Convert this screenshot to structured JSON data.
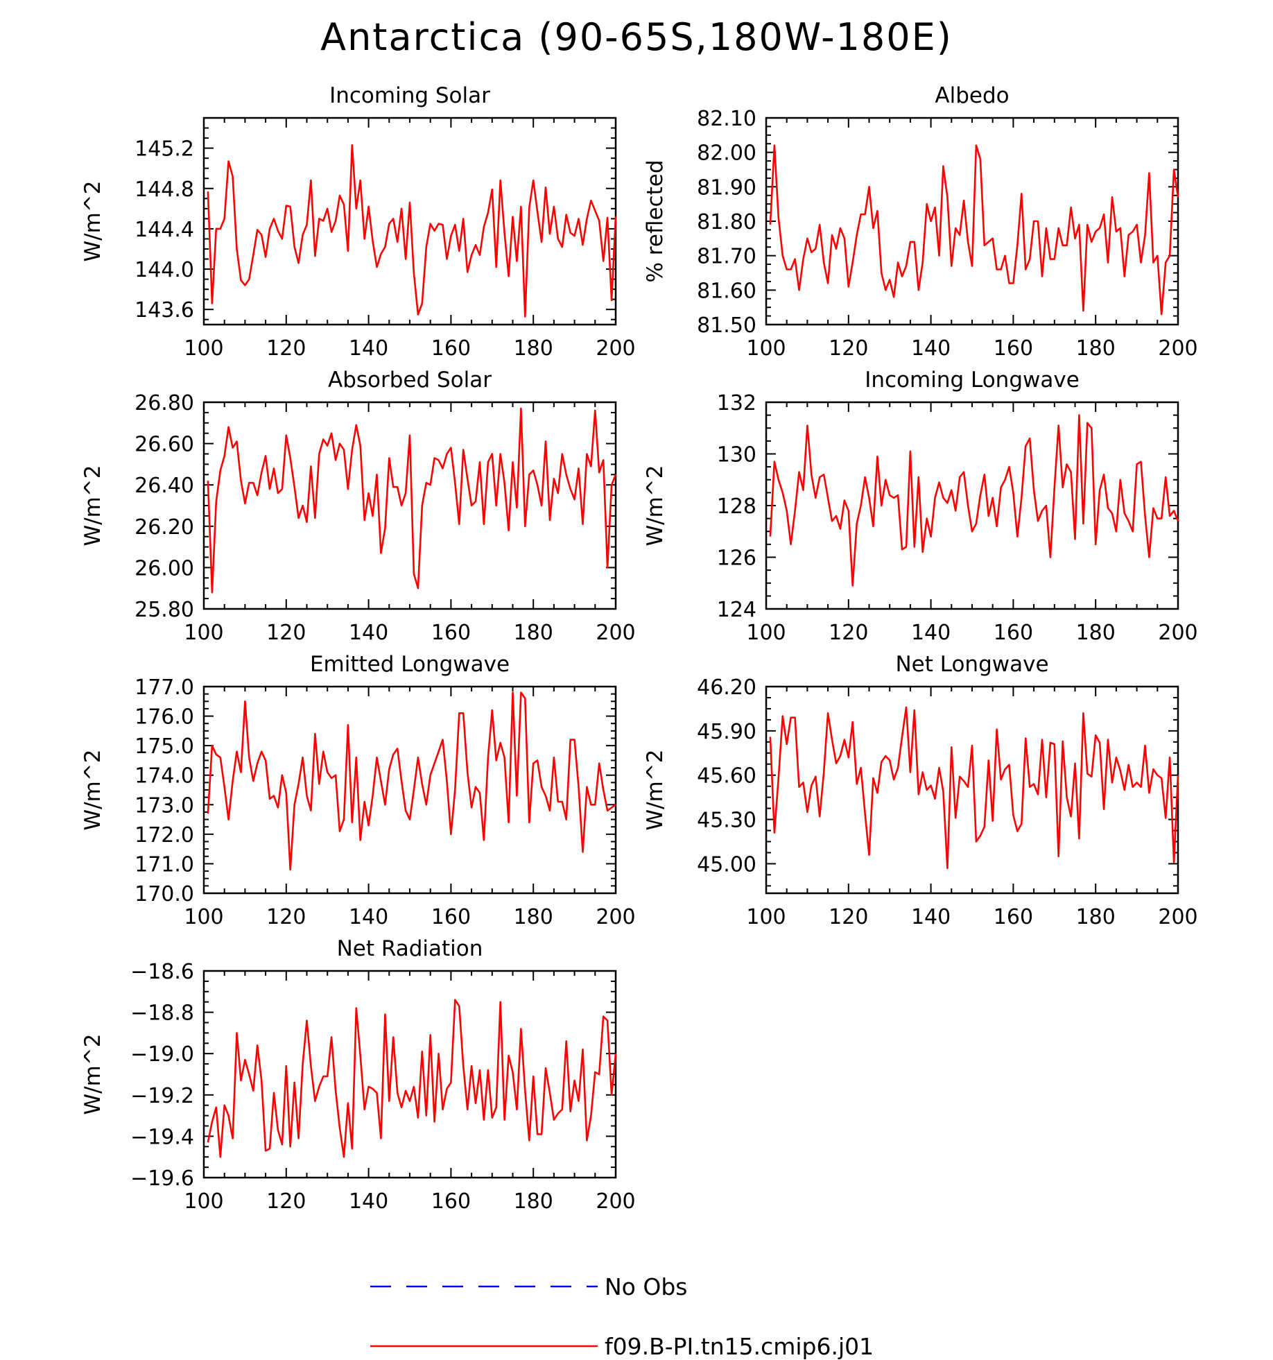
{
  "title": "Antarctica (90-65S,180W-180E)",
  "colors": {
    "model": "#ff0000",
    "obs": "#0000ff",
    "axis": "#000000"
  },
  "legend": [
    {
      "label": "No Obs",
      "style": "dashed",
      "color": "#0000ff"
    },
    {
      "label": "f09.B-PI.tn15.cmip6.j01",
      "style": "solid",
      "color": "#ff0000"
    }
  ],
  "chart_data": [
    {
      "type": "line",
      "title": "Incoming Solar",
      "ylabel": "W/m^2",
      "xlim": [
        100,
        200
      ],
      "ylim": [
        143.45,
        145.5
      ],
      "xticks": [
        100,
        120,
        140,
        160,
        180,
        200
      ],
      "yticks": [
        143.6,
        144.0,
        144.4,
        144.8,
        145.2
      ],
      "ytick_decimals": 1,
      "series": [
        {
          "name": "f09.B-PI.tn15.cmip6.j01",
          "x_start": 101,
          "x_step": 1,
          "values": [
            144.77,
            143.66,
            144.4,
            144.4,
            144.5,
            145.07,
            144.92,
            144.2,
            143.89,
            143.84,
            143.9,
            144.14,
            144.39,
            144.34,
            144.12,
            144.4,
            144.5,
            144.38,
            144.3,
            144.63,
            144.62,
            144.22,
            144.06,
            144.34,
            144.44,
            144.88,
            144.13,
            144.5,
            144.48,
            144.6,
            144.37,
            144.48,
            144.73,
            144.64,
            144.18,
            145.23,
            144.6,
            144.88,
            144.3,
            144.62,
            144.28,
            144.02,
            144.15,
            144.22,
            144.45,
            144.5,
            144.27,
            144.6,
            144.1,
            144.66,
            143.96,
            143.55,
            143.66,
            144.22,
            144.45,
            144.38,
            144.45,
            144.44,
            144.1,
            144.33,
            144.44,
            144.18,
            144.5,
            143.97,
            144.14,
            144.24,
            144.14,
            144.42,
            144.56,
            144.79,
            144.02,
            144.88,
            144.36,
            143.93,
            144.52,
            144.08,
            144.62,
            143.53,
            144.61,
            144.88,
            144.57,
            144.27,
            144.81,
            144.35,
            144.62,
            144.3,
            144.22,
            144.54,
            144.36,
            144.33,
            144.5,
            144.24,
            144.5,
            144.68,
            144.58,
            144.48,
            144.08,
            144.51,
            143.69,
            144.52
          ]
        }
      ]
    },
    {
      "type": "line",
      "title": "Albedo",
      "ylabel": "% reflected",
      "xlim": [
        100,
        200
      ],
      "ylim": [
        81.5,
        82.1
      ],
      "xticks": [
        100,
        120,
        140,
        160,
        180,
        200
      ],
      "yticks": [
        81.5,
        81.6,
        81.7,
        81.8,
        81.9,
        82.0,
        82.1
      ],
      "ytick_decimals": 2,
      "series": [
        {
          "name": "f09.B-PI.tn15.cmip6.j01",
          "x_start": 101,
          "x_step": 1,
          "values": [
            81.79,
            82.02,
            81.81,
            81.7,
            81.66,
            81.66,
            81.69,
            81.6,
            81.69,
            81.75,
            81.71,
            81.72,
            81.79,
            81.68,
            81.62,
            81.76,
            81.72,
            81.78,
            81.75,
            81.61,
            81.68,
            81.76,
            81.82,
            81.82,
            81.9,
            81.78,
            81.83,
            81.65,
            81.6,
            81.63,
            81.58,
            81.68,
            81.64,
            81.67,
            81.74,
            81.74,
            81.6,
            81.68,
            81.85,
            81.8,
            81.84,
            81.7,
            81.96,
            81.87,
            81.67,
            81.78,
            81.76,
            81.86,
            81.74,
            81.67,
            82.02,
            81.98,
            81.73,
            81.74,
            81.75,
            81.66,
            81.66,
            81.7,
            81.62,
            81.62,
            81.73,
            81.88,
            81.66,
            81.69,
            81.8,
            81.8,
            81.64,
            81.78,
            81.69,
            81.69,
            81.78,
            81.73,
            81.73,
            81.84,
            81.75,
            81.79,
            81.54,
            81.79,
            81.74,
            81.77,
            81.78,
            81.82,
            81.68,
            81.87,
            81.77,
            81.78,
            81.64,
            81.76,
            81.77,
            81.79,
            81.68,
            81.76,
            81.94,
            81.68,
            81.7,
            81.53,
            81.68,
            81.7,
            81.95,
            81.87
          ]
        }
      ]
    },
    {
      "type": "line",
      "title": "Absorbed Solar",
      "ylabel": "W/m^2",
      "xlim": [
        100,
        200
      ],
      "ylim": [
        25.8,
        26.8
      ],
      "xticks": [
        100,
        120,
        140,
        160,
        180,
        200
      ],
      "yticks": [
        25.8,
        26.0,
        26.2,
        26.4,
        26.6,
        26.8
      ],
      "ytick_decimals": 2,
      "series": [
        {
          "name": "f09.B-PI.tn15.cmip6.j01",
          "x_start": 101,
          "x_step": 1,
          "values": [
            26.42,
            25.88,
            26.32,
            26.47,
            26.54,
            26.68,
            26.58,
            26.61,
            26.42,
            26.31,
            26.41,
            26.41,
            26.35,
            26.46,
            26.54,
            26.38,
            26.48,
            26.36,
            26.38,
            26.64,
            26.53,
            26.39,
            26.24,
            26.3,
            26.22,
            26.49,
            26.24,
            26.55,
            26.62,
            26.59,
            26.65,
            26.52,
            26.6,
            26.57,
            26.38,
            26.57,
            26.69,
            26.59,
            26.23,
            26.36,
            26.25,
            26.45,
            26.07,
            26.19,
            26.53,
            26.39,
            26.39,
            26.3,
            26.36,
            26.64,
            25.97,
            25.9,
            26.3,
            26.41,
            26.4,
            26.53,
            26.52,
            26.48,
            26.55,
            26.58,
            26.41,
            26.21,
            26.57,
            26.43,
            26.3,
            26.32,
            26.51,
            26.21,
            26.51,
            26.55,
            26.3,
            26.55,
            26.41,
            26.18,
            26.51,
            26.29,
            26.77,
            26.2,
            26.45,
            26.47,
            26.4,
            26.3,
            26.61,
            26.23,
            26.43,
            26.36,
            26.55,
            26.45,
            26.38,
            26.33,
            26.48,
            26.21,
            26.55,
            26.49,
            26.76,
            26.46,
            26.52,
            26.0,
            26.4,
            26.45
          ]
        }
      ]
    },
    {
      "type": "line",
      "title": "Incoming Longwave",
      "ylabel": "W/m^2",
      "xlim": [
        100,
        200
      ],
      "ylim": [
        124,
        132
      ],
      "xticks": [
        100,
        120,
        140,
        160,
        180,
        200
      ],
      "yticks": [
        124,
        126,
        128,
        130,
        132
      ],
      "ytick_decimals": 0,
      "series": [
        {
          "name": "f09.B-PI.tn15.cmip6.j01",
          "x_start": 101,
          "x_step": 1,
          "values": [
            126.8,
            129.7,
            129.0,
            128.5,
            127.8,
            126.5,
            127.8,
            129.3,
            128.6,
            131.1,
            129.2,
            128.3,
            129.1,
            129.2,
            128.3,
            127.4,
            127.6,
            127.1,
            128.2,
            127.8,
            124.9,
            127.3,
            128.0,
            129.1,
            128.3,
            127.2,
            129.9,
            128.0,
            129.0,
            128.4,
            128.3,
            128.4,
            126.3,
            126.4,
            130.1,
            126.4,
            129.1,
            126.2,
            127.5,
            126.8,
            128.3,
            128.9,
            128.3,
            128.1,
            128.6,
            127.8,
            129.1,
            129.3,
            128.0,
            127.0,
            127.3,
            128.4,
            129.2,
            127.6,
            128.3,
            127.2,
            128.7,
            129.0,
            129.5,
            128.5,
            126.8,
            128.3,
            130.3,
            130.6,
            128.6,
            127.4,
            127.8,
            128.0,
            126.0,
            128.7,
            131.1,
            128.7,
            129.6,
            129.3,
            126.7,
            131.5,
            127.3,
            131.2,
            131.0,
            126.5,
            128.6,
            129.2,
            127.9,
            127.7,
            127.0,
            129.0,
            127.7,
            127.4,
            127.0,
            129.6,
            129.7,
            127.6,
            126.0,
            127.9,
            127.5,
            127.5,
            129.1,
            127.6,
            127.8,
            127.4
          ]
        }
      ]
    },
    {
      "type": "line",
      "title": "Emitted Longwave",
      "ylabel": "W/m^2",
      "xlim": [
        100,
        200
      ],
      "ylim": [
        170,
        177
      ],
      "xticks": [
        100,
        120,
        140,
        160,
        180,
        200
      ],
      "yticks": [
        170.0,
        171.0,
        172.0,
        173.0,
        174.0,
        175.0,
        176.0,
        177.0
      ],
      "ytick_decimals": 1,
      "series": [
        {
          "name": "f09.B-PI.tn15.cmip6.j01",
          "x_start": 101,
          "x_step": 1,
          "values": [
            172.7,
            175.0,
            174.7,
            174.6,
            173.6,
            172.5,
            173.8,
            174.8,
            174.1,
            176.5,
            174.6,
            173.8,
            174.4,
            174.8,
            174.5,
            173.2,
            173.3,
            172.9,
            174.0,
            173.4,
            170.8,
            173.0,
            173.7,
            174.6,
            173.3,
            172.8,
            175.4,
            173.7,
            174.8,
            174.1,
            173.9,
            174.0,
            172.1,
            172.5,
            175.7,
            172.4,
            174.6,
            171.8,
            173.1,
            172.3,
            173.3,
            174.6,
            173.8,
            173.0,
            174.2,
            174.7,
            174.9,
            173.8,
            172.8,
            172.5,
            173.5,
            174.6,
            173.7,
            173.0,
            174.0,
            174.4,
            174.8,
            175.2,
            173.8,
            172.0,
            173.5,
            176.1,
            176.1,
            174.1,
            172.9,
            173.6,
            173.4,
            171.8,
            174.6,
            176.2,
            174.5,
            175.1,
            174.6,
            172.4,
            176.8,
            173.3,
            176.8,
            176.6,
            172.4,
            174.4,
            174.5,
            173.6,
            173.3,
            172.8,
            174.6,
            173.1,
            173.1,
            172.5,
            175.2,
            175.2,
            173.6,
            171.4,
            173.6,
            173.0,
            173.0,
            174.4,
            173.5,
            172.8,
            172.9,
            173.0
          ]
        }
      ]
    },
    {
      "type": "line",
      "title": "Net Longwave",
      "ylabel": "W/m^2",
      "xlim": [
        100,
        200
      ],
      "ylim": [
        44.8,
        46.2
      ],
      "xticks": [
        100,
        120,
        140,
        160,
        180,
        200
      ],
      "yticks": [
        45.0,
        45.3,
        45.6,
        45.9,
        46.2
      ],
      "ytick_decimals": 2,
      "series": [
        {
          "name": "f09.B-PI.tn15.cmip6.j01",
          "x_start": 101,
          "x_step": 1,
          "values": [
            45.86,
            45.21,
            45.58,
            46.0,
            45.81,
            45.99,
            45.99,
            45.52,
            45.55,
            45.35,
            45.53,
            45.59,
            45.32,
            45.62,
            46.02,
            45.84,
            45.68,
            45.73,
            45.84,
            45.72,
            45.96,
            45.54,
            45.65,
            45.34,
            45.06,
            45.58,
            45.48,
            45.69,
            45.73,
            45.7,
            45.57,
            45.65,
            45.86,
            46.06,
            45.62,
            46.04,
            45.47,
            45.62,
            45.5,
            45.53,
            45.44,
            45.65,
            45.49,
            44.97,
            45.79,
            45.31,
            45.59,
            45.56,
            45.52,
            45.8,
            45.15,
            45.19,
            45.25,
            45.7,
            45.29,
            45.91,
            45.57,
            45.64,
            45.67,
            45.33,
            45.22,
            45.27,
            45.85,
            45.52,
            45.54,
            45.47,
            45.84,
            45.45,
            45.82,
            45.81,
            45.05,
            45.83,
            45.45,
            45.32,
            45.68,
            45.17,
            46.02,
            45.61,
            45.59,
            45.87,
            45.82,
            45.37,
            45.84,
            45.55,
            45.72,
            45.63,
            45.5,
            45.67,
            45.52,
            45.55,
            45.52,
            45.8,
            45.48,
            45.64,
            45.6,
            45.58,
            45.31,
            45.72,
            45.01,
            45.6
          ]
        }
      ]
    },
    {
      "type": "line",
      "title": "Net Radiation",
      "ylabel": "W/m^2",
      "xlim": [
        100,
        200
      ],
      "ylim": [
        -19.6,
        -18.6
      ],
      "xticks": [
        100,
        120,
        140,
        160,
        180,
        200
      ],
      "yticks": [
        -19.6,
        -19.4,
        -19.2,
        -19.0,
        -18.8,
        -18.6
      ],
      "ytick_decimals": 1,
      "series": [
        {
          "name": "f09.B-PI.tn15.cmip6.j01",
          "x_start": 101,
          "x_step": 1,
          "values": [
            -19.43,
            -19.33,
            -19.26,
            -19.5,
            -19.25,
            -19.3,
            -19.41,
            -18.9,
            -19.13,
            -19.03,
            -19.1,
            -19.18,
            -18.96,
            -19.13,
            -19.47,
            -19.46,
            -19.19,
            -19.37,
            -19.44,
            -19.06,
            -19.45,
            -19.14,
            -19.41,
            -19.05,
            -18.84,
            -19.06,
            -19.23,
            -19.16,
            -19.11,
            -19.11,
            -18.92,
            -19.18,
            -19.36,
            -19.5,
            -19.24,
            -19.46,
            -18.78,
            -19.01,
            -19.27,
            -19.16,
            -19.17,
            -19.19,
            -19.41,
            -18.81,
            -19.23,
            -18.92,
            -19.19,
            -19.26,
            -19.18,
            -19.23,
            -19.16,
            -19.31,
            -18.99,
            -19.3,
            -18.91,
            -19.33,
            -19.0,
            -19.27,
            -19.17,
            -19.14,
            -18.74,
            -18.77,
            -19.06,
            -19.27,
            -19.06,
            -19.24,
            -19.08,
            -19.32,
            -19.08,
            -19.31,
            -19.26,
            -18.75,
            -19.32,
            -19.01,
            -19.09,
            -19.27,
            -18.88,
            -19.18,
            -19.42,
            -19.11,
            -19.39,
            -19.39,
            -19.07,
            -19.19,
            -19.32,
            -19.29,
            -19.27,
            -18.94,
            -19.28,
            -19.13,
            -19.23,
            -18.98,
            -19.42,
            -19.3,
            -19.09,
            -19.1,
            -18.82,
            -18.84,
            -19.2,
            -19.0
          ]
        }
      ]
    }
  ]
}
